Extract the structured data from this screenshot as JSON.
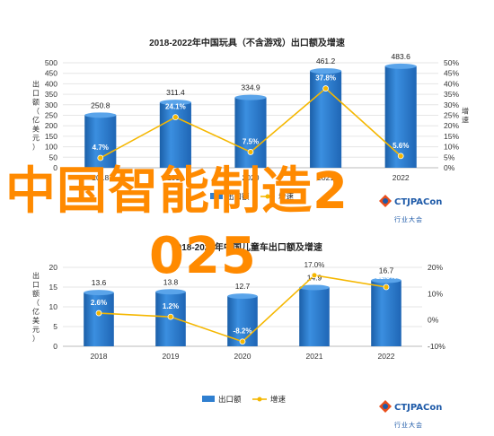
{
  "chart_data": [
    {
      "type": "bar",
      "title": "2018-2022年中国玩具（不含游戏）出口额及增速",
      "categories": [
        "2018",
        "2019",
        "2020",
        "2021",
        "2022"
      ],
      "ylabel_left": "出口额（亿美元）",
      "ylabel_right": "增速",
      "ylim": [
        0,
        500
      ],
      "yticks_left": [
        "0",
        "50",
        "100",
        "150",
        "200",
        "250",
        "300",
        "350",
        "400",
        "450",
        "500"
      ],
      "ylim_right": [
        0,
        50
      ],
      "yticks_right": [
        "0%",
        "5%",
        "10%",
        "15%",
        "20%",
        "25%",
        "30%",
        "35%",
        "40%",
        "45%",
        "50%"
      ],
      "series": [
        {
          "name": "出口额",
          "kind": "bar",
          "values": [
            250.8,
            311.4,
            334.9,
            461.2,
            483.6
          ],
          "labels": [
            "250.8",
            "311.4",
            "334.9",
            "461.2",
            "483.6"
          ]
        },
        {
          "name": "增速",
          "kind": "line",
          "values": [
            4.7,
            24.1,
            7.5,
            37.8,
            5.6
          ],
          "labels": [
            "4.7%",
            "24.1%",
            "7.5%",
            "37.8%",
            "5.6%"
          ]
        }
      ],
      "legend": "bottom"
    },
    {
      "type": "bar",
      "title": "2018-2022年中国儿童车出口额及增速",
      "categories": [
        "2018",
        "2019",
        "2020",
        "2021",
        "2022"
      ],
      "ylabel_left": "出口额（亿美元）",
      "ylim": [
        0,
        20
      ],
      "yticks_left": [
        "0",
        "5",
        "10",
        "15",
        "20"
      ],
      "ylim_right": [
        -10,
        20
      ],
      "yticks_right": [
        "-10%",
        "0%",
        "10%",
        "20%"
      ],
      "series": [
        {
          "name": "出口额",
          "kind": "bar",
          "values": [
            13.6,
            13.8,
            12.7,
            14.9,
            16.7
          ],
          "labels": [
            "13.6",
            "13.8",
            "12.7",
            "14.9",
            "16.7"
          ]
        },
        {
          "name": "增速",
          "kind": "line",
          "values": [
            2.6,
            1.2,
            -8.2,
            17.0,
            12.5
          ],
          "labels": [
            "2.6%",
            "1.2%",
            "-8.2%",
            "17.0%",
            "12.5%"
          ]
        }
      ],
      "legend": "bottom"
    }
  ],
  "overlay_text": {
    "line1": "中国智能制造2",
    "line2": "025"
  },
  "brand": {
    "name": "CTJPACon",
    "sub": "行业大会"
  },
  "colors": {
    "bar": "#2f7fd0",
    "bar_dark": "#1b5fa8",
    "line": "#f5b700",
    "overlay": "#ff8a00",
    "grid": "#e6e6e6"
  }
}
